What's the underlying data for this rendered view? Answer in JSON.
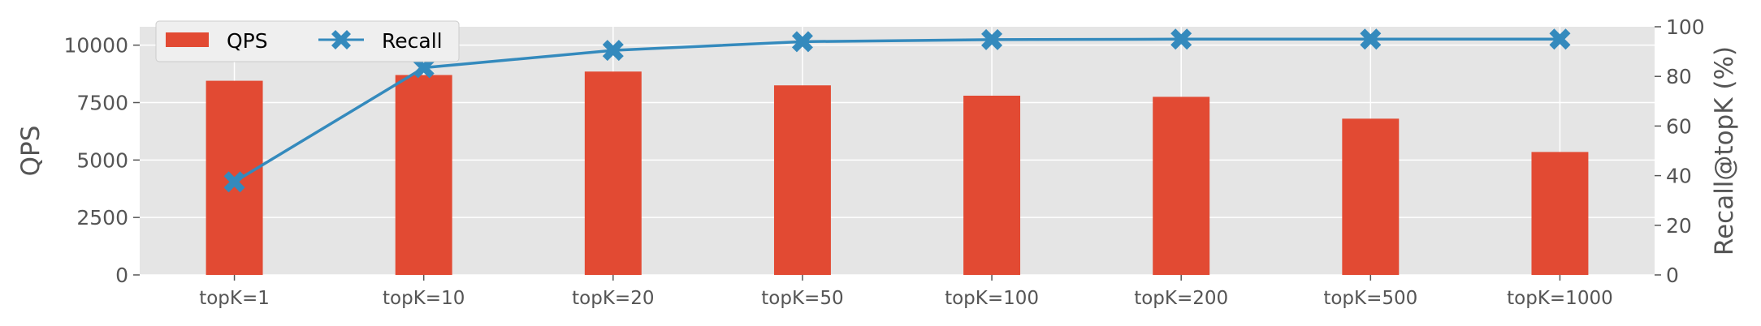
{
  "chart_data": {
    "type": "bar",
    "categories": [
      "topK=1",
      "topK=10",
      "topK=20",
      "topK=50",
      "topK=100",
      "topK=200",
      "topK=500",
      "topK=1000"
    ],
    "series": [
      {
        "name": "QPS",
        "type": "bar",
        "axis": "left",
        "color": "#E24A33",
        "values": [
          8450,
          8700,
          8850,
          8250,
          7800,
          7750,
          6800,
          5350
        ]
      },
      {
        "name": "Recall",
        "type": "line",
        "axis": "right",
        "marker": "X",
        "color": "#348ABD",
        "values": [
          37.5,
          83.5,
          90.5,
          94.0,
          94.8,
          95.0,
          95.0,
          95.0
        ]
      }
    ],
    "title": "",
    "xlabel": "",
    "ylabel": "QPS",
    "y2label": "Recall@topK (%)",
    "ylim": [
      0,
      10800
    ],
    "y2lim": [
      0,
      100
    ],
    "yticks": [
      "0",
      "2500",
      "5000",
      "7500",
      "10000"
    ],
    "y2ticks": [
      "0",
      "20",
      "40",
      "60",
      "80",
      "100"
    ],
    "grid": true,
    "legend": {
      "placement": "top-left",
      "labels": [
        "QPS",
        "Recall"
      ]
    },
    "style": {
      "plot_background": "#E5E5E5",
      "grid_color": "#FFFFFF"
    }
  }
}
